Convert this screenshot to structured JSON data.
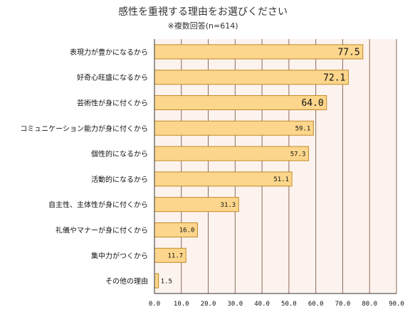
{
  "chart_data": {
    "type": "bar",
    "orientation": "horizontal",
    "title": "感性を重視する理由をお選びください",
    "subtitle": "※複数回答(n=614)",
    "categories": [
      "表現力が豊かになるから",
      "好奇心旺盛になるから",
      "芸術性が身に付くから",
      "コミュニケーション能力が身に付くから",
      "個性的になるから",
      "活動的になるから",
      "自主性、主体性が身に付くから",
      "礼儀やマナーが身に付くから",
      "集中力がつくから",
      "その他の理由"
    ],
    "values": [
      77.5,
      72.1,
      64.0,
      59.1,
      57.3,
      51.1,
      31.3,
      16.0,
      11.7,
      1.5
    ],
    "value_labels": [
      "77.5",
      "72.1",
      "64.0",
      "59.1",
      "57.3",
      "51.1",
      "31.3",
      "16.0",
      "11.7",
      "1.5"
    ],
    "xlim": [
      0,
      90
    ],
    "ticks": [
      "0.0",
      "10.0",
      "20.0",
      "30.0",
      "40.0",
      "50.0",
      "60.0",
      "70.0",
      "80.0",
      "90.0"
    ],
    "grid": true,
    "colors": {
      "bar_fill": "#fcd68c",
      "bar_stroke": "#c08a28",
      "plot_bg": "#fdf3ee",
      "grid": "#8a6a5a"
    }
  }
}
